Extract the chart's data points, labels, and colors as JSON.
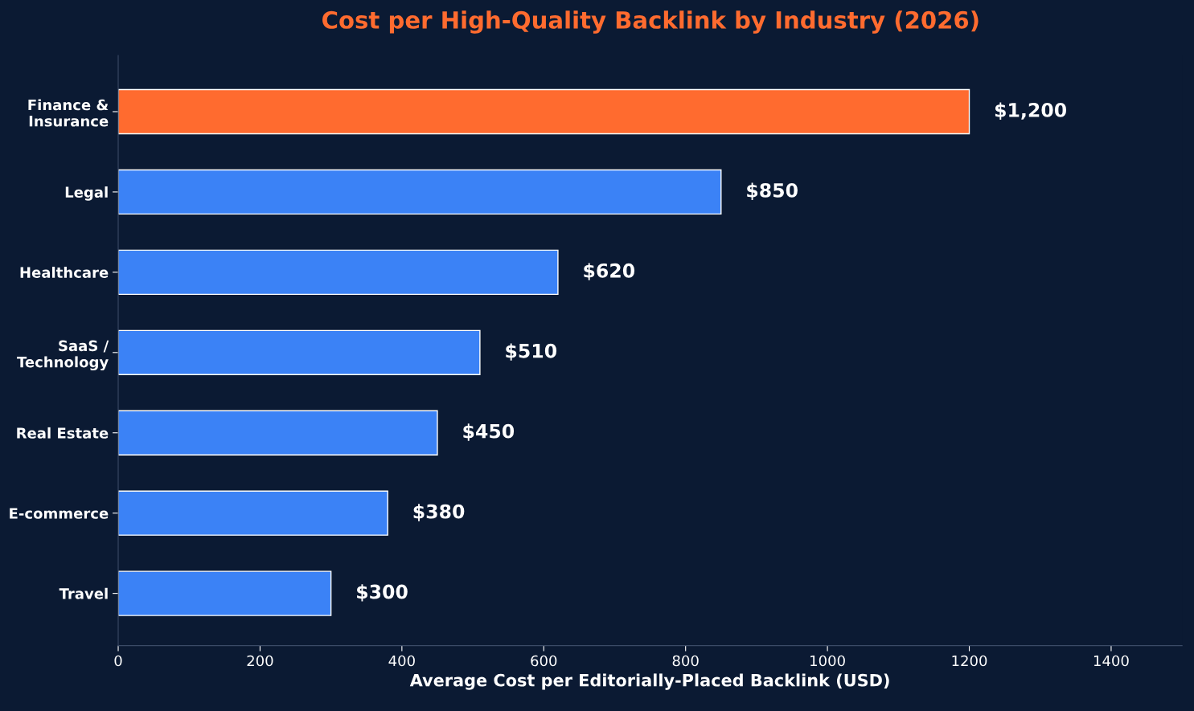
{
  "chart_data": {
    "type": "bar",
    "orientation": "horizontal",
    "title": "Cost per High-Quality Backlink by Industry (2026)",
    "xlabel": "Average Cost per Editorially-Placed Backlink (USD)",
    "categories": [
      "Finance &\nInsurance",
      "Legal",
      "Healthcare",
      "SaaS /\nTechnology",
      "Real Estate",
      "E-commerce",
      "Travel"
    ],
    "values": [
      1200,
      850,
      620,
      510,
      450,
      380,
      300
    ],
    "colors": [
      "#ff6b2f",
      "#3b82f6",
      "#3b82f6",
      "#3b82f6",
      "#3b82f6",
      "#3b82f6",
      "#3b82f6"
    ],
    "value_labels": [
      "$1,200",
      "$850",
      "$620",
      "$510",
      "$450",
      "$380",
      "$300"
    ],
    "xlim": [
      0,
      1500
    ],
    "xticks": [
      0,
      200,
      400,
      600,
      800,
      1000,
      1200,
      1400
    ],
    "grid": false,
    "legend": false
  }
}
